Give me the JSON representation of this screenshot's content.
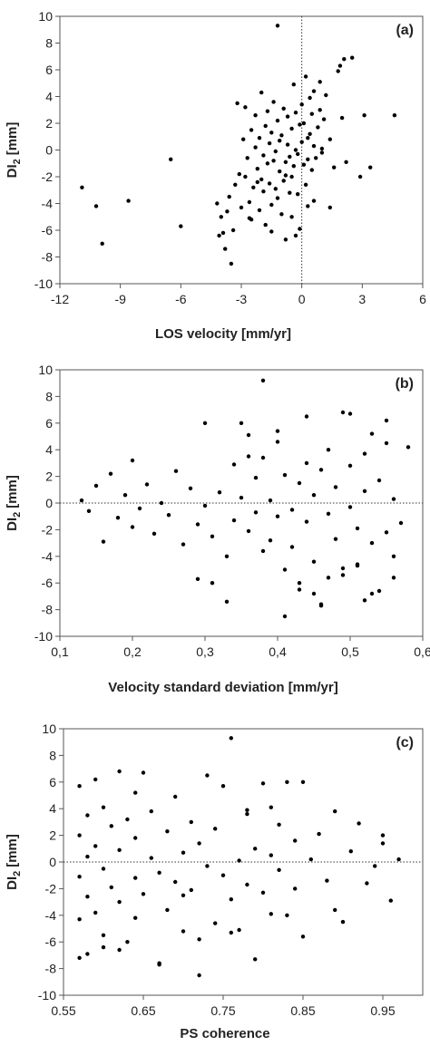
{
  "chart_data": [
    {
      "type": "scatter",
      "panel_label": "(a)",
      "xlabel": "LOS velocity [mm/yr]",
      "ylabel": "DI",
      "ylabel_sub": "2",
      "ylabel_unit": "[mm]",
      "xlim": [
        -12,
        6
      ],
      "ylim": [
        -10,
        10
      ],
      "x_ticks": [
        "-12",
        "-9",
        "-6",
        "-3",
        "0",
        "3",
        "6"
      ],
      "y_ticks": [
        "-10",
        "-8",
        "-6",
        "-4",
        "-2",
        "0",
        "2",
        "4",
        "6",
        "8",
        "10"
      ],
      "reference_line": {
        "orientation": "vertical",
        "value": 0,
        "style": "dotted"
      },
      "series": [
        {
          "x": [
            -10.9,
            -10.2,
            -9.9,
            -8.6,
            -6.5,
            -6.0,
            -4.2,
            -4.1,
            -4.0,
            -3.8,
            -3.7,
            -3.6,
            -3.5,
            -3.4,
            -3.3,
            -3.2,
            -3.1,
            -3.0,
            -2.9,
            -2.8,
            -2.8,
            -2.7,
            -2.6,
            -2.5,
            -2.5,
            -2.4,
            -2.3,
            -2.3,
            -2.2,
            -2.1,
            -2.1,
            -2.0,
            -2.0,
            -1.9,
            -1.9,
            -1.8,
            -1.8,
            -1.7,
            -1.7,
            -1.6,
            -1.6,
            -1.5,
            -1.5,
            -1.4,
            -1.4,
            -1.3,
            -1.3,
            -1.2,
            -1.2,
            -1.1,
            -1.1,
            -1.0,
            -1.0,
            -0.9,
            -0.9,
            -0.8,
            -0.8,
            -0.7,
            -0.7,
            -0.6,
            -0.6,
            -0.5,
            -0.5,
            -0.4,
            -0.4,
            -0.3,
            -0.3,
            -0.2,
            -0.2,
            -0.1,
            -0.1,
            0.0,
            0.0,
            0.1,
            0.1,
            0.2,
            0.2,
            0.3,
            0.3,
            0.4,
            0.4,
            0.5,
            0.5,
            0.6,
            0.6,
            0.7,
            0.8,
            0.9,
            1.0,
            1.1,
            1.2,
            1.4,
            1.6,
            1.8,
            1.9,
            2.0,
            2.2,
            2.5,
            2.9,
            3.1,
            3.4,
            4.6,
            -3.9,
            -2.6,
            -1.5,
            -0.8,
            -0.3,
            0.6,
            1.4,
            0.9,
            2.1,
            -1.2,
            -2.2,
            -0.5,
            0.3,
            1.0
          ],
          "y": [
            -2.8,
            -4.2,
            -7.0,
            -3.8,
            -0.7,
            -5.7,
            -4.0,
            -6.4,
            -5.0,
            -7.4,
            -4.6,
            -3.5,
            -8.5,
            -6.0,
            -2.6,
            3.5,
            -1.8,
            -4.3,
            0.8,
            -2.0,
            3.2,
            -0.6,
            -3.9,
            1.5,
            -5.2,
            -2.8,
            0.2,
            2.6,
            -1.4,
            -4.5,
            0.9,
            -2.2,
            4.3,
            -0.4,
            -3.1,
            1.8,
            -5.6,
            -1.0,
            2.9,
            -2.5,
            0.5,
            -4.1,
            1.3,
            -0.8,
            3.6,
            -2.9,
            -0.1,
            -3.6,
            2.2,
            -1.6,
            0.7,
            -4.8,
            1.1,
            -2.3,
            3.1,
            -0.9,
            -1.9,
            0.4,
            2.5,
            -3.2,
            -0.5,
            1.6,
            -2.0,
            4.9,
            -1.2,
            0.0,
            2.8,
            -3.3,
            -0.3,
            1.9,
            -5.9,
            0.6,
            3.4,
            -1.1,
            2.0,
            -2.6,
            5.5,
            0.9,
            -0.7,
            3.9,
            1.2,
            -1.5,
            2.7,
            0.3,
            4.4,
            -0.6,
            1.7,
            3.0,
            -0.2,
            2.3,
            4.1,
            0.8,
            -1.3,
            5.9,
            6.3,
            2.4,
            -0.9,
            6.9,
            -2.0,
            2.6,
            -1.3,
            2.6,
            -6.2,
            -5.1,
            -6.1,
            -6.7,
            -6.4,
            -3.8,
            -4.3,
            5.1,
            6.8,
            9.3,
            -2.4,
            -5.0,
            -4.2,
            0.1
          ]
        }
      ]
    },
    {
      "type": "scatter",
      "panel_label": "(b)",
      "xlabel": "Velocity standard  deviation  [mm/yr]",
      "ylabel": "DI",
      "ylabel_sub": "2",
      "ylabel_unit": "[mm]",
      "xlim": [
        0.1,
        0.6
      ],
      "ylim": [
        -10,
        10
      ],
      "x_ticks": [
        "0,1",
        "0,2",
        "0,3",
        "0,4",
        "0,5",
        "0,6"
      ],
      "y_ticks": [
        "-10",
        "-8",
        "-6",
        "-4",
        "-2",
        "0",
        "2",
        "4",
        "6",
        "8",
        "10"
      ],
      "reference_line": {
        "orientation": "horizontal",
        "value": 0,
        "style": "dotted"
      },
      "series": [
        {
          "x": [
            0.13,
            0.14,
            0.15,
            0.16,
            0.17,
            0.18,
            0.19,
            0.2,
            0.2,
            0.21,
            0.22,
            0.23,
            0.24,
            0.25,
            0.26,
            0.27,
            0.28,
            0.29,
            0.3,
            0.3,
            0.31,
            0.32,
            0.33,
            0.34,
            0.34,
            0.35,
            0.35,
            0.36,
            0.36,
            0.37,
            0.37,
            0.38,
            0.38,
            0.39,
            0.39,
            0.4,
            0.4,
            0.41,
            0.41,
            0.42,
            0.42,
            0.43,
            0.43,
            0.44,
            0.44,
            0.45,
            0.45,
            0.46,
            0.46,
            0.47,
            0.47,
            0.48,
            0.48,
            0.49,
            0.49,
            0.5,
            0.5,
            0.51,
            0.51,
            0.52,
            0.52,
            0.53,
            0.53,
            0.54,
            0.54,
            0.55,
            0.55,
            0.56,
            0.56,
            0.57,
            0.58,
            0.38,
            0.29,
            0.31,
            0.41,
            0.46,
            0.5,
            0.52,
            0.55,
            0.33,
            0.44,
            0.47,
            0.36,
            0.43,
            0.49,
            0.53,
            0.56,
            0.4,
            0.45,
            0.51
          ],
          "y": [
            0.2,
            -0.6,
            1.3,
            -2.9,
            2.2,
            -1.1,
            0.6,
            3.2,
            -1.8,
            -0.4,
            1.4,
            -2.3,
            0.0,
            -0.9,
            2.4,
            -3.1,
            1.1,
            -1.6,
            -0.2,
            6.0,
            -2.5,
            0.8,
            -4.0,
            2.9,
            -1.3,
            6.0,
            0.4,
            -2.1,
            3.5,
            -0.7,
            1.9,
            -3.6,
            9.2,
            0.2,
            -2.8,
            4.6,
            -1.0,
            -5.0,
            2.1,
            -0.5,
            -3.3,
            1.5,
            -6.0,
            -1.4,
            3.0,
            0.6,
            -4.4,
            2.5,
            -7.6,
            -0.8,
            4.0,
            -2.7,
            1.2,
            -5.4,
            6.8,
            -0.3,
            2.8,
            -1.9,
            -4.7,
            3.7,
            0.9,
            -3.0,
            5.2,
            -6.6,
            1.7,
            -2.2,
            4.5,
            -5.6,
            0.3,
            -1.5,
            4.2,
            3.4,
            -5.7,
            -6.0,
            -8.5,
            -7.7,
            6.7,
            -7.3,
            6.2,
            -7.4,
            6.5,
            -5.6,
            5.1,
            -6.5,
            -4.9,
            -6.8,
            -4.0,
            5.4,
            -6.8,
            -4.6
          ]
        }
      ]
    },
    {
      "type": "scatter",
      "panel_label": "(c)",
      "xlabel": "PS coherence",
      "ylabel": "DI",
      "ylabel_sub": "2",
      "ylabel_unit": "[mm]",
      "xlim": [
        0.55,
        1.0
      ],
      "ylim": [
        -10,
        10
      ],
      "x_ticks": [
        "0.55",
        "0.65",
        "0.75",
        "0.85",
        "0.95"
      ],
      "y_ticks": [
        "-10",
        "-8",
        "-6",
        "-4",
        "-2",
        "0",
        "2",
        "4",
        "6",
        "8",
        "10"
      ],
      "reference_line": {
        "orientation": "horizontal",
        "value": 0,
        "style": "dotted"
      },
      "series": [
        {
          "x": [
            0.57,
            0.57,
            0.57,
            0.57,
            0.57,
            0.58,
            0.58,
            0.58,
            0.59,
            0.59,
            0.59,
            0.6,
            0.6,
            0.6,
            0.61,
            0.61,
            0.62,
            0.62,
            0.62,
            0.63,
            0.63,
            0.64,
            0.64,
            0.64,
            0.65,
            0.65,
            0.66,
            0.66,
            0.67,
            0.67,
            0.68,
            0.68,
            0.69,
            0.69,
            0.7,
            0.7,
            0.71,
            0.71,
            0.72,
            0.72,
            0.73,
            0.73,
            0.74,
            0.74,
            0.75,
            0.75,
            0.76,
            0.76,
            0.77,
            0.77,
            0.78,
            0.78,
            0.79,
            0.79,
            0.8,
            0.8,
            0.81,
            0.81,
            0.82,
            0.82,
            0.83,
            0.83,
            0.84,
            0.84,
            0.85,
            0.85,
            0.86,
            0.87,
            0.88,
            0.89,
            0.9,
            0.91,
            0.92,
            0.93,
            0.94,
            0.95,
            0.96,
            0.97,
            0.76,
            0.72,
            0.67,
            0.78,
            0.62,
            0.6,
            0.58,
            0.64,
            0.81,
            0.89,
            0.95,
            0.7
          ],
          "y": [
            5.7,
            -4.3,
            2.0,
            -1.1,
            -7.2,
            3.5,
            -2.6,
            0.4,
            6.2,
            -3.8,
            1.2,
            -0.5,
            4.1,
            -5.5,
            2.7,
            -1.9,
            6.8,
            -3.0,
            0.9,
            -6.0,
            3.2,
            -1.2,
            1.8,
            -4.2,
            6.7,
            -2.4,
            0.3,
            3.8,
            -7.7,
            -0.8,
            2.3,
            -3.6,
            4.9,
            -1.5,
            0.7,
            -5.2,
            3.0,
            -2.1,
            -8.5,
            1.4,
            6.5,
            -0.3,
            -4.6,
            2.5,
            -1.0,
            5.7,
            9.3,
            -2.8,
            0.1,
            -5.1,
            3.6,
            -1.7,
            -7.3,
            1.0,
            5.9,
            -2.3,
            0.5,
            -3.9,
            2.8,
            -0.6,
            6.0,
            -4.0,
            1.6,
            -2.0,
            6.0,
            -5.6,
            0.2,
            2.1,
            -1.4,
            3.8,
            -4.5,
            0.8,
            2.9,
            -1.6,
            -0.3,
            1.4,
            -2.9,
            0.2,
            -5.3,
            -5.8,
            -7.6,
            3.9,
            -6.6,
            -6.4,
            -6.9,
            5.2,
            4.1,
            -3.6,
            2.0,
            -2.5
          ]
        }
      ]
    }
  ]
}
